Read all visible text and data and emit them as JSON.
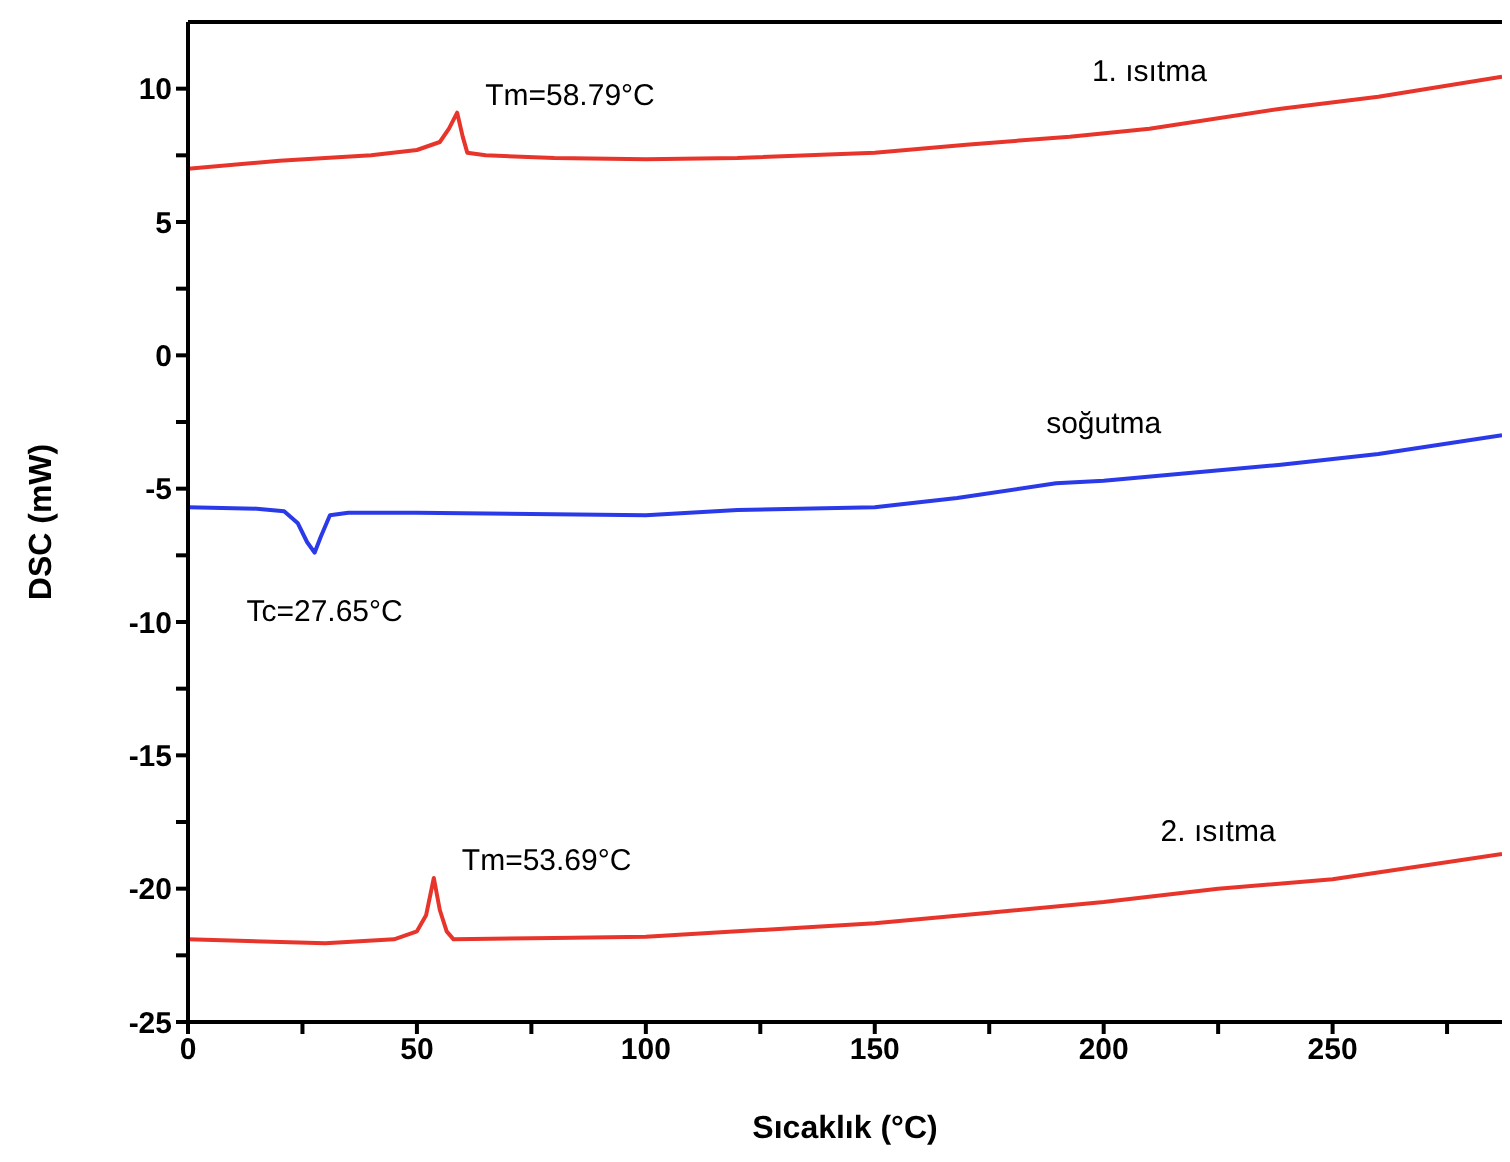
{
  "chart_data": {
    "type": "line",
    "xlabel": "Sıcaklık (°C)",
    "ylabel": "DSC (mW)",
    "xlim": [
      0,
      287
    ],
    "ylim": [
      -25,
      12.5
    ],
    "xticks": [
      0,
      {
        "value": 25,
        "label": null
      },
      50,
      {
        "value": 75,
        "label": null
      },
      100,
      {
        "value": 125,
        "label": null
      },
      150,
      {
        "value": 175,
        "label": null
      },
      200,
      {
        "value": 225,
        "label": null
      },
      250,
      {
        "value": 275,
        "label": null
      }
    ],
    "yticks": [
      -25,
      {
        "value": -22.5,
        "label": null
      },
      -20,
      {
        "value": -17.5,
        "label": null
      },
      -15,
      {
        "value": -12.5,
        "label": null
      },
      -10,
      {
        "value": -7.5,
        "label": null
      },
      -5,
      {
        "value": -2.5,
        "label": null
      },
      0,
      {
        "value": 2.5,
        "label": null
      },
      5,
      {
        "value": 7.5,
        "label": null
      },
      10
    ],
    "series": [
      {
        "name": "1. ısıtma",
        "color": "#e8352b",
        "x": [
          0,
          20,
          40,
          50,
          55,
          57,
          58.79,
          60,
          61,
          65,
          80,
          100,
          120,
          150,
          170,
          192.6,
          210,
          238.7,
          260,
          287
        ],
        "values": [
          7.0,
          7.3,
          7.5,
          7.7,
          8.0,
          8.5,
          9.1,
          8.2,
          7.6,
          7.5,
          7.4,
          7.35,
          7.4,
          7.6,
          7.9,
          8.2,
          8.5,
          9.25,
          9.7,
          10.45
        ]
      },
      {
        "name": "soğutma",
        "color": "#2b3ae8",
        "x": [
          0,
          15,
          21,
          24,
          26,
          27.65,
          29,
          31,
          35,
          50,
          100,
          120,
          150,
          168,
          189.6,
          200,
          238.7,
          260,
          287
        ],
        "values": [
          -5.7,
          -5.75,
          -5.85,
          -6.3,
          -7.0,
          -7.4,
          -6.8,
          -6.0,
          -5.9,
          -5.9,
          -6.0,
          -5.8,
          -5.7,
          -5.35,
          -4.8,
          -4.7,
          -4.1,
          -3.7,
          -3.0
        ]
      },
      {
        "name": "2. ısıtma",
        "color": "#e8352b",
        "x": [
          0,
          30,
          45,
          50,
          52,
          53.69,
          55,
          56.5,
          58,
          80,
          100,
          120,
          150,
          175,
          200,
          225,
          250,
          287
        ],
        "values": [
          -21.9,
          -22.05,
          -21.9,
          -21.6,
          -21.0,
          -19.6,
          -20.8,
          -21.6,
          -21.9,
          -21.85,
          -21.8,
          -21.6,
          -21.3,
          -20.9,
          -20.5,
          -20.0,
          -19.65,
          -18.7
        ]
      }
    ],
    "annotations": [
      {
        "text": "Tm=58.79°C",
        "x": 58.79,
        "y": 9.1
      },
      {
        "text": "Tc=27.65°C",
        "x": 27.65,
        "y": -7.4
      },
      {
        "text": "Tm=53.69°C",
        "x": 53.69,
        "y": -19.6
      }
    ]
  }
}
